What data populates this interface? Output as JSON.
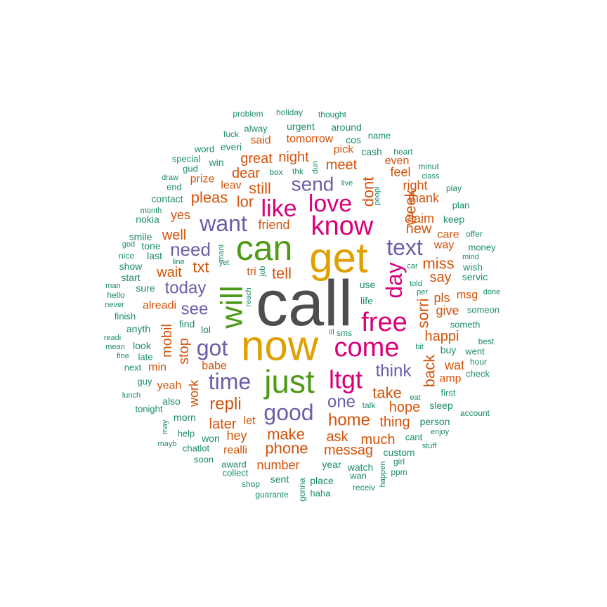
{
  "chart_data": {
    "type": "wordcloud",
    "palette": {
      "t1": "#4d4d4d",
      "t2": "#e0a000",
      "t3": "#4e9a18",
      "t4": "#d8007a",
      "t5": "#6a5fa8",
      "t6": "#d2530a",
      "t7": "#1b8c6c"
    },
    "words": [
      {
        "text": "call",
        "tier": "t1"
      },
      {
        "text": "now",
        "tier": "t2"
      },
      {
        "text": "get",
        "tier": "t2"
      },
      {
        "text": "can",
        "tier": "t3"
      },
      {
        "text": "will",
        "tier": "t3"
      },
      {
        "text": "just",
        "tier": "t3"
      },
      {
        "text": "free",
        "tier": "t4"
      },
      {
        "text": "come",
        "tier": "t4"
      },
      {
        "text": "know",
        "tier": "t4"
      },
      {
        "text": "love",
        "tier": "t4"
      },
      {
        "text": "like",
        "tier": "t4"
      },
      {
        "text": "ltgt",
        "tier": "t4"
      },
      {
        "text": "day",
        "tier": "t4"
      },
      {
        "text": "good",
        "tier": "t5"
      },
      {
        "text": "time",
        "tier": "t5"
      },
      {
        "text": "got",
        "tier": "t5"
      },
      {
        "text": "want",
        "tier": "t5"
      },
      {
        "text": "text",
        "tier": "t5"
      },
      {
        "text": "send",
        "tier": "t5"
      },
      {
        "text": "need",
        "tier": "t5"
      },
      {
        "text": "today",
        "tier": "t5"
      },
      {
        "text": "see",
        "tier": "t5"
      },
      {
        "text": "think",
        "tier": "t5"
      },
      {
        "text": "one",
        "tier": "t5"
      },
      {
        "text": "home",
        "tier": "t6"
      },
      {
        "text": "take",
        "tier": "t6"
      },
      {
        "text": "repli",
        "tier": "t6"
      },
      {
        "text": "sorri",
        "tier": "t6"
      },
      {
        "text": "back",
        "tier": "t6"
      },
      {
        "text": "week",
        "tier": "t6"
      },
      {
        "text": "dont",
        "tier": "t6"
      },
      {
        "text": "still",
        "tier": "t6"
      },
      {
        "text": "lor",
        "tier": "t6"
      },
      {
        "text": "pleas",
        "tier": "t6"
      },
      {
        "text": "txt",
        "tier": "t6"
      },
      {
        "text": "tell",
        "tier": "t6"
      },
      {
        "text": "mobil",
        "tier": "t6"
      },
      {
        "text": "stop",
        "tier": "t6"
      },
      {
        "text": "phone",
        "tier": "t6"
      },
      {
        "text": "make",
        "tier": "t6"
      },
      {
        "text": "later",
        "tier": "t6"
      },
      {
        "text": "ask",
        "tier": "t6"
      },
      {
        "text": "much",
        "tier": "t6"
      },
      {
        "text": "messag",
        "tier": "t6"
      },
      {
        "text": "hope",
        "tier": "t6"
      },
      {
        "text": "thing",
        "tier": "t6"
      },
      {
        "text": "happi",
        "tier": "t6"
      },
      {
        "text": "say",
        "tier": "t6"
      },
      {
        "text": "miss",
        "tier": "t6"
      },
      {
        "text": "new",
        "tier": "t6"
      },
      {
        "text": "claim",
        "tier": "t6"
      },
      {
        "text": "thank",
        "tier": "t6"
      },
      {
        "text": "meet",
        "tier": "t6"
      },
      {
        "text": "night",
        "tier": "t6"
      },
      {
        "text": "great",
        "tier": "t6"
      },
      {
        "text": "dear",
        "tier": "t6"
      },
      {
        "text": "wait",
        "tier": "t6"
      },
      {
        "text": "well",
        "tier": "t6"
      },
      {
        "text": "yes",
        "tier": "t6"
      },
      {
        "text": "friend",
        "tier": "t6"
      },
      {
        "text": "give",
        "tier": "t6"
      },
      {
        "text": "pls",
        "tier": "t6"
      },
      {
        "text": "wat",
        "tier": "t6"
      },
      {
        "text": "number",
        "tier": "t6"
      },
      {
        "text": "hey",
        "tier": "t6"
      },
      {
        "text": "work",
        "tier": "t6"
      },
      {
        "text": "realli",
        "tier": "t6"
      },
      {
        "text": "feel",
        "tier": "t6"
      },
      {
        "text": "right",
        "tier": "t6"
      },
      {
        "text": "even",
        "tier": "t6"
      },
      {
        "text": "tomorrow",
        "tier": "t6"
      },
      {
        "text": "said",
        "tier": "t6"
      },
      {
        "text": "prize",
        "tier": "t6"
      },
      {
        "text": "alreadi",
        "tier": "t6"
      },
      {
        "text": "babe",
        "tier": "t6"
      },
      {
        "text": "min",
        "tier": "t6"
      },
      {
        "text": "yeah",
        "tier": "t6"
      },
      {
        "text": "amp",
        "tier": "t6"
      },
      {
        "text": "care",
        "tier": "t6"
      },
      {
        "text": "way",
        "tier": "t6"
      },
      {
        "text": "msg",
        "tier": "t6"
      },
      {
        "text": "tri",
        "tier": "t6"
      },
      {
        "text": "let",
        "tier": "t6"
      },
      {
        "text": "leav",
        "tier": "t6"
      },
      {
        "text": "pick",
        "tier": "t6"
      },
      {
        "text": "year",
        "tier": "t7"
      },
      {
        "text": "watch",
        "tier": "t7"
      },
      {
        "text": "place",
        "tier": "t7"
      },
      {
        "text": "sent",
        "tier": "t7"
      },
      {
        "text": "collect",
        "tier": "t7"
      },
      {
        "text": "award",
        "tier": "t7"
      },
      {
        "text": "won",
        "tier": "t7"
      },
      {
        "text": "also",
        "tier": "t7"
      },
      {
        "text": "morn",
        "tier": "t7"
      },
      {
        "text": "help",
        "tier": "t7"
      },
      {
        "text": "chatlot",
        "tier": "t7"
      },
      {
        "text": "soon",
        "tier": "t7"
      },
      {
        "text": "tonight",
        "tier": "t7"
      },
      {
        "text": "guy",
        "tier": "t7"
      },
      {
        "text": "next",
        "tier": "t7"
      },
      {
        "text": "late",
        "tier": "t7"
      },
      {
        "text": "look",
        "tier": "t7"
      },
      {
        "text": "anyth",
        "tier": "t7"
      },
      {
        "text": "finish",
        "tier": "t7"
      },
      {
        "text": "sure",
        "tier": "t7"
      },
      {
        "text": "start",
        "tier": "t7"
      },
      {
        "text": "show",
        "tier": "t7"
      },
      {
        "text": "last",
        "tier": "t7"
      },
      {
        "text": "tone",
        "tier": "t7"
      },
      {
        "text": "smile",
        "tier": "t7"
      },
      {
        "text": "nokia",
        "tier": "t7"
      },
      {
        "text": "contact",
        "tier": "t7"
      },
      {
        "text": "end",
        "tier": "t7"
      },
      {
        "text": "gud",
        "tier": "t7"
      },
      {
        "text": "special",
        "tier": "t7"
      },
      {
        "text": "word",
        "tier": "t7"
      },
      {
        "text": "win",
        "tier": "t7"
      },
      {
        "text": "everi",
        "tier": "t7"
      },
      {
        "text": "fuck",
        "tier": "t7"
      },
      {
        "text": "alway",
        "tier": "t7"
      },
      {
        "text": "problem",
        "tier": "t7"
      },
      {
        "text": "holiday",
        "tier": "t7"
      },
      {
        "text": "thought",
        "tier": "t7"
      },
      {
        "text": "urgent",
        "tier": "t7"
      },
      {
        "text": "around",
        "tier": "t7"
      },
      {
        "text": "cos",
        "tier": "t7"
      },
      {
        "text": "name",
        "tier": "t7"
      },
      {
        "text": "cash",
        "tier": "t7"
      },
      {
        "text": "heart",
        "tier": "t7"
      },
      {
        "text": "minut",
        "tier": "t7"
      },
      {
        "text": "class",
        "tier": "t7"
      },
      {
        "text": "play",
        "tier": "t7"
      },
      {
        "text": "plan",
        "tier": "t7"
      },
      {
        "text": "keep",
        "tier": "t7"
      },
      {
        "text": "offer",
        "tier": "t7"
      },
      {
        "text": "money",
        "tier": "t7"
      },
      {
        "text": "mind",
        "tier": "t7"
      },
      {
        "text": "wish",
        "tier": "t7"
      },
      {
        "text": "servic",
        "tier": "t7"
      },
      {
        "text": "done",
        "tier": "t7"
      },
      {
        "text": "someon",
        "tier": "t7"
      },
      {
        "text": "someth",
        "tier": "t7"
      },
      {
        "text": "best",
        "tier": "t7"
      },
      {
        "text": "went",
        "tier": "t7"
      },
      {
        "text": "hour",
        "tier": "t7"
      },
      {
        "text": "check",
        "tier": "t7"
      },
      {
        "text": "buy",
        "tier": "t7"
      },
      {
        "text": "first",
        "tier": "t7"
      },
      {
        "text": "sleep",
        "tier": "t7"
      },
      {
        "text": "account",
        "tier": "t7"
      },
      {
        "text": "person",
        "tier": "t7"
      },
      {
        "text": "enjoy",
        "tier": "t7"
      },
      {
        "text": "stuff",
        "tier": "t7"
      },
      {
        "text": "cant",
        "tier": "t7"
      },
      {
        "text": "custom",
        "tier": "t7"
      },
      {
        "text": "girl",
        "tier": "t7"
      },
      {
        "text": "ppm",
        "tier": "t7"
      },
      {
        "text": "happen",
        "tier": "t7"
      },
      {
        "text": "receiv",
        "tier": "t7"
      },
      {
        "text": "wan",
        "tier": "t7"
      },
      {
        "text": "haha",
        "tier": "t7"
      },
      {
        "text": "gonna",
        "tier": "t7"
      },
      {
        "text": "guarante",
        "tier": "t7"
      },
      {
        "text": "shop",
        "tier": "t7"
      },
      {
        "text": "mayb",
        "tier": "t7"
      },
      {
        "text": "may",
        "tier": "t7"
      },
      {
        "text": "lunch",
        "tier": "t7"
      },
      {
        "text": "fine",
        "tier": "t7"
      },
      {
        "text": "mean",
        "tier": "t7"
      },
      {
        "text": "readi",
        "tier": "t7"
      },
      {
        "text": "never",
        "tier": "t7"
      },
      {
        "text": "hello",
        "tier": "t7"
      },
      {
        "text": "man",
        "tier": "t7"
      },
      {
        "text": "nice",
        "tier": "t7"
      },
      {
        "text": "god",
        "tier": "t7"
      },
      {
        "text": "month",
        "tier": "t7"
      },
      {
        "text": "draw",
        "tier": "t7"
      },
      {
        "text": "box",
        "tier": "t7"
      },
      {
        "text": "thk",
        "tier": "t7"
      },
      {
        "text": "dun",
        "tier": "t7"
      },
      {
        "text": "live",
        "tier": "t7"
      },
      {
        "text": "peopl",
        "tier": "t7"
      },
      {
        "text": "mani",
        "tier": "t7"
      },
      {
        "text": "yet",
        "tier": "t7"
      },
      {
        "text": "line",
        "tier": "t7"
      },
      {
        "text": "job",
        "tier": "t7"
      },
      {
        "text": "reach",
        "tier": "t7"
      },
      {
        "text": "use",
        "tier": "t7"
      },
      {
        "text": "life",
        "tier": "t7"
      },
      {
        "text": "told",
        "tier": "t7"
      },
      {
        "text": "per",
        "tier": "t7"
      },
      {
        "text": "car",
        "tier": "t7"
      },
      {
        "text": "find",
        "tier": "t7"
      },
      {
        "text": "lol",
        "tier": "t7"
      },
      {
        "text": "ill",
        "tier": "t7"
      },
      {
        "text": "sms",
        "tier": "t7"
      },
      {
        "text": "bit",
        "tier": "t7"
      },
      {
        "text": "talk",
        "tier": "t7"
      },
      {
        "text": "eat",
        "tier": "t7"
      }
    ]
  }
}
